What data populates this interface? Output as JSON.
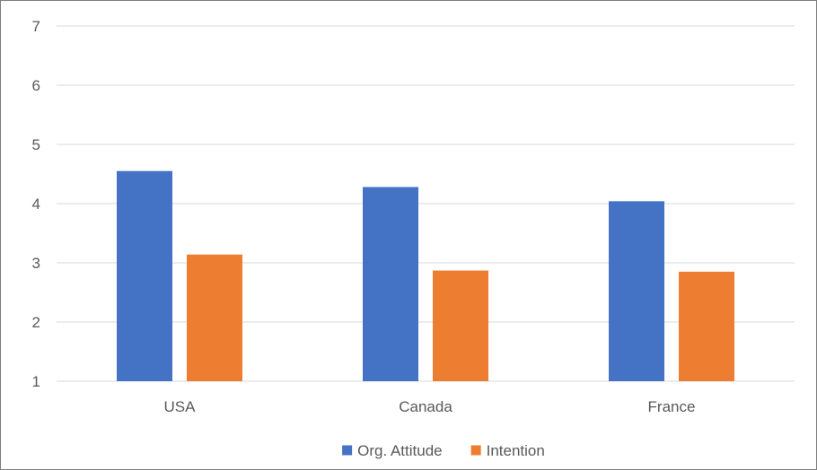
{
  "chart_data": {
    "type": "bar",
    "categories": [
      "USA",
      "Canada",
      "France"
    ],
    "series": [
      {
        "name": "Org. Attitude",
        "values": [
          4.55,
          4.28,
          4.04
        ],
        "color": "#4472C4"
      },
      {
        "name": "Intention",
        "values": [
          3.14,
          2.87,
          2.85
        ],
        "color": "#ED7D31"
      }
    ],
    "y_ticks": [
      "1",
      "2",
      "3",
      "4",
      "5",
      "6",
      "7"
    ],
    "ylim": [
      1,
      7
    ],
    "grid": true,
    "legend_position": "bottom",
    "gridline_color": "#d9d9d9"
  }
}
